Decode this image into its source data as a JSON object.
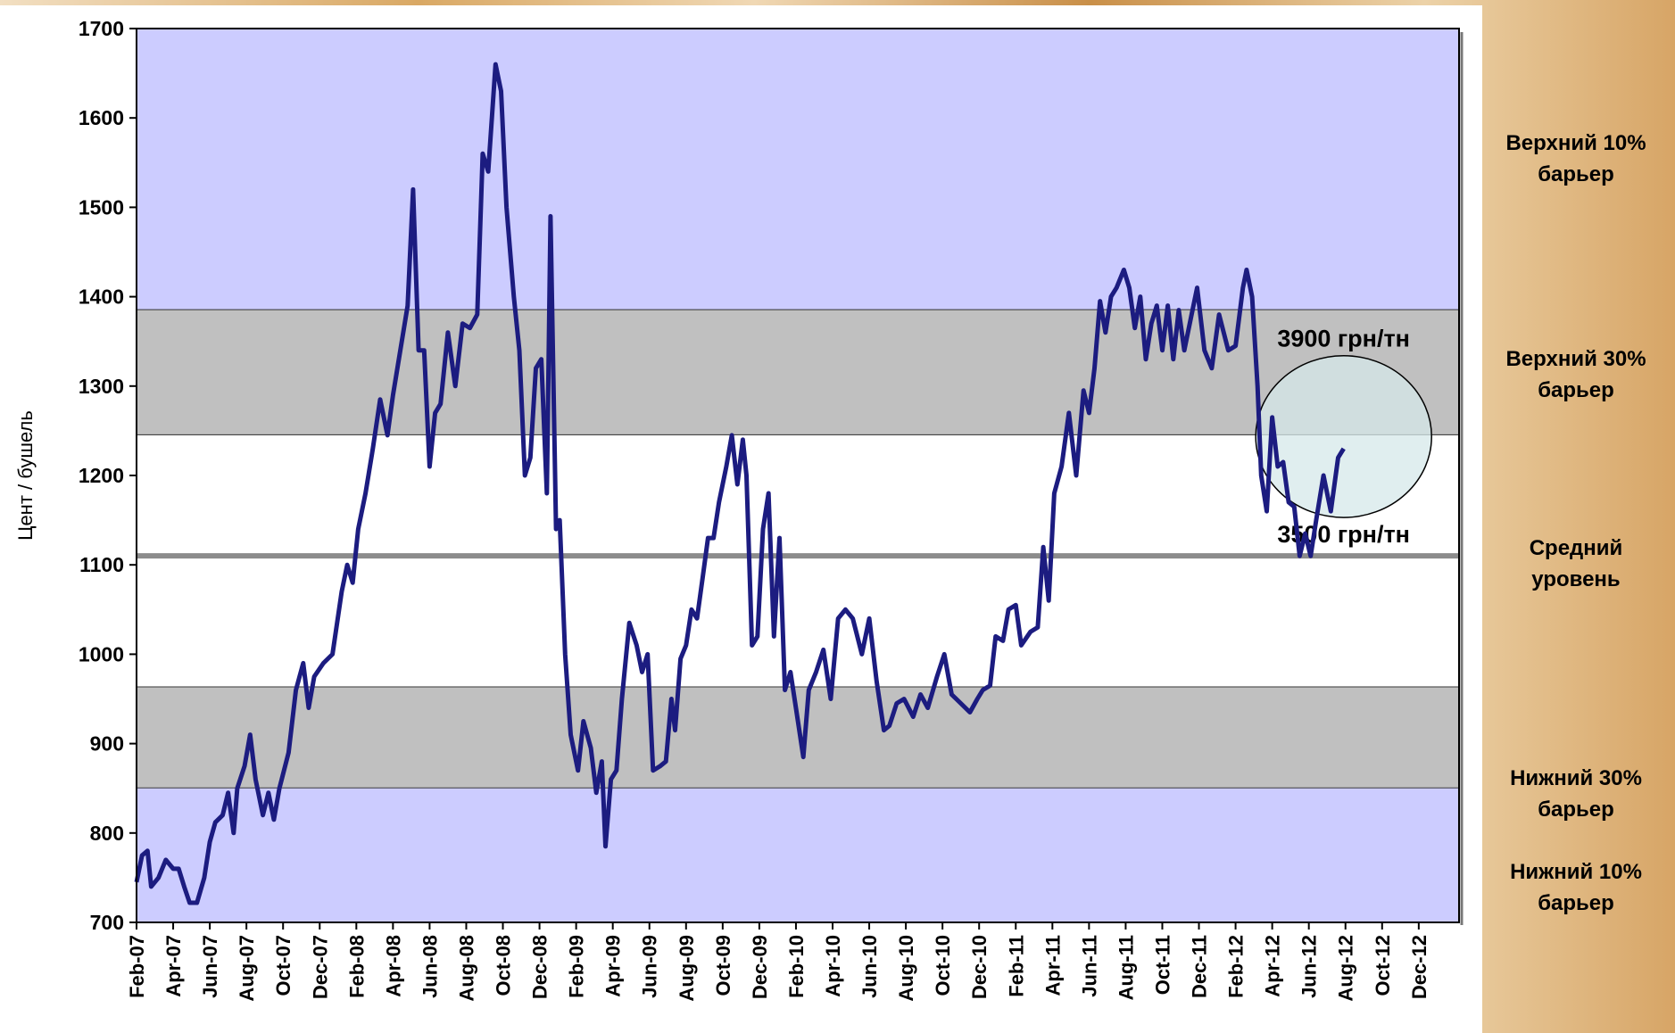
{
  "chart_data": {
    "type": "line",
    "y_label": "Цент / бушель",
    "xlim": [
      0,
      72.2
    ],
    "ylim": [
      700,
      1700
    ],
    "yticks": [
      700,
      800,
      900,
      1000,
      1100,
      1200,
      1300,
      1400,
      1500,
      1600,
      1700
    ],
    "xticks": [
      {
        "value": 0,
        "label": "Feb-07"
      },
      {
        "value": 2,
        "label": "Apr-07"
      },
      {
        "value": 4,
        "label": "Jun-07"
      },
      {
        "value": 6,
        "label": "Aug-07"
      },
      {
        "value": 8,
        "label": "Oct-07"
      },
      {
        "value": 10,
        "label": "Dec-07"
      },
      {
        "value": 12,
        "label": "Feb-08"
      },
      {
        "value": 14,
        "label": "Apr-08"
      },
      {
        "value": 16,
        "label": "Jun-08"
      },
      {
        "value": 18,
        "label": "Aug-08"
      },
      {
        "value": 20,
        "label": "Oct-08"
      },
      {
        "value": 22,
        "label": "Dec-08"
      },
      {
        "value": 24,
        "label": "Feb-09"
      },
      {
        "value": 26,
        "label": "Apr-09"
      },
      {
        "value": 28,
        "label": "Jun-09"
      },
      {
        "value": 30,
        "label": "Aug-09"
      },
      {
        "value": 32,
        "label": "Oct-09"
      },
      {
        "value": 34,
        "label": "Dec-09"
      },
      {
        "value": 36,
        "label": "Feb-10"
      },
      {
        "value": 38,
        "label": "Apr-10"
      },
      {
        "value": 40,
        "label": "Jun-10"
      },
      {
        "value": 42,
        "label": "Aug-10"
      },
      {
        "value": 44,
        "label": "Oct-10"
      },
      {
        "value": 46,
        "label": "Dec-10"
      },
      {
        "value": 48,
        "label": "Feb-11"
      },
      {
        "value": 50,
        "label": "Apr-11"
      },
      {
        "value": 52,
        "label": "Jun-11"
      },
      {
        "value": 54,
        "label": "Aug-11"
      },
      {
        "value": 56,
        "label": "Oct-11"
      },
      {
        "value": 58,
        "label": "Dec-11"
      },
      {
        "value": 60,
        "label": "Feb-12"
      },
      {
        "value": 62,
        "label": "Apr-12"
      },
      {
        "value": 64,
        "label": "Jun-12"
      },
      {
        "value": 66,
        "label": "Aug-12"
      },
      {
        "value": 68,
        "label": "Oct-12"
      },
      {
        "value": 70,
        "label": "Dec-12"
      }
    ],
    "bands": [
      {
        "from": 1385,
        "to": 1700,
        "color": "#ccccff"
      },
      {
        "from": 1245,
        "to": 1385,
        "color": "#c0c0c0"
      },
      {
        "from": 963,
        "to": 1245,
        "color": "#ffffff"
      },
      {
        "from": 850,
        "to": 963,
        "color": "#c0c0c0"
      },
      {
        "from": 700,
        "to": 850,
        "color": "#ccccff"
      }
    ],
    "mean_level": 1110,
    "highlight": {
      "xrange": [
        61.1,
        70.7
      ],
      "yrange": [
        1153,
        1334
      ]
    },
    "annotations": [
      "3900 грн/тн",
      "3500 грн/тн"
    ],
    "side_labels": [
      [
        "Верхний 10%",
        "барьер"
      ],
      [
        "Верхний 30%",
        "барьер"
      ],
      [
        "Средний",
        "уровень"
      ],
      [
        "Нижний 30%",
        "барьер"
      ],
      [
        "Нижний 10%",
        "барьер"
      ]
    ],
    "x": [
      0,
      0.3,
      0.6,
      0.8,
      1.2,
      1.6,
      2,
      2.3,
      2.6,
      2.9,
      3.3,
      3.7,
      4,
      4.3,
      4.7,
      5,
      5.3,
      5.5,
      5.9,
      6.2,
      6.5,
      6.9,
      7.2,
      7.5,
      7.8,
      8.3,
      8.7,
      9.1,
      9.4,
      9.7,
      10.2,
      10.7,
      11.2,
      11.5,
      11.8,
      12.1,
      12.5,
      12.9,
      13.3,
      13.7,
      14,
      14.4,
      14.8,
      15.1,
      15.4,
      15.7,
      16,
      16.3,
      16.6,
      17,
      17.4,
      17.8,
      18.2,
      18.6,
      18.9,
      19.2,
      19.6,
      19.9,
      20.2,
      20.6,
      20.9,
      21.2,
      21.5,
      21.8,
      22.1,
      22.4,
      22.6,
      22.9,
      23.1,
      23.4,
      23.7,
      24.1,
      24.4,
      24.8,
      25.1,
      25.4,
      25.6,
      25.9,
      26.2,
      26.5,
      26.9,
      27.3,
      27.6,
      27.9,
      28.2,
      28.6,
      28.9,
      29.2,
      29.4,
      29.7,
      30,
      30.3,
      30.6,
      30.9,
      31.2,
      31.5,
      31.8,
      32.2,
      32.5,
      32.8,
      33.1,
      33.3,
      33.6,
      33.9,
      34.2,
      34.5,
      34.8,
      35.1,
      35.4,
      35.7,
      36,
      36.4,
      36.7,
      37.1,
      37.5,
      37.9,
      38.3,
      38.7,
      39.1,
      39.6,
      40,
      40.4,
      40.8,
      41.1,
      41.5,
      41.9,
      42.4,
      42.8,
      43.2,
      43.7,
      44.1,
      44.5,
      45,
      45.5,
      45.9,
      46.2,
      46.6,
      46.9,
      47.3,
      47.6,
      48,
      48.3,
      48.8,
      49.2,
      49.5,
      49.8,
      50.1,
      50.5,
      50.9,
      51.3,
      51.7,
      52,
      52.3,
      52.6,
      52.9,
      53.2,
      53.5,
      53.9,
      54.2,
      54.5,
      54.8,
      55.1,
      55.4,
      55.7,
      56,
      56.3,
      56.6,
      56.9,
      57.2,
      57.6,
      57.9,
      58.3,
      58.7,
      59.1,
      59.6,
      60,
      60.4,
      60.6,
      60.9,
      61.2,
      61.4,
      61.7,
      62,
      62.3,
      62.6,
      62.9,
      63.2,
      63.5,
      63.8,
      64.1,
      64.4,
      64.8,
      65.2,
      65.6,
      65.9
    ],
    "series": [
      {
        "color": "#1c1c80",
        "values": [
          745,
          775,
          780,
          740,
          750,
          770,
          760,
          760,
          740,
          722,
          722,
          750,
          790,
          812,
          820,
          845,
          800,
          850,
          875,
          910,
          860,
          820,
          845,
          815,
          850,
          890,
          960,
          990,
          940,
          975,
          990,
          1000,
          1070,
          1100,
          1080,
          1140,
          1180,
          1230,
          1285,
          1245,
          1290,
          1340,
          1390,
          1520,
          1340,
          1340,
          1210,
          1270,
          1280,
          1360,
          1300,
          1370,
          1365,
          1380,
          1560,
          1540,
          1660,
          1630,
          1500,
          1400,
          1340,
          1200,
          1220,
          1320,
          1330,
          1180,
          1490,
          1140,
          1150,
          1000,
          910,
          870,
          925,
          895,
          845,
          880,
          785,
          860,
          870,
          950,
          1035,
          1010,
          980,
          1000,
          870,
          875,
          880,
          950,
          915,
          995,
          1010,
          1050,
          1040,
          1085,
          1130,
          1130,
          1170,
          1210,
          1245,
          1190,
          1240,
          1200,
          1010,
          1020,
          1140,
          1180,
          1020,
          1130,
          960,
          980,
          940,
          885,
          960,
          980,
          1005,
          950,
          1040,
          1050,
          1040,
          1000,
          1040,
          970,
          915,
          920,
          945,
          950,
          930,
          955,
          940,
          975,
          1000,
          955,
          945,
          935,
          950,
          960,
          965,
          1020,
          1015,
          1050,
          1055,
          1010,
          1025,
          1030,
          1120,
          1060,
          1180,
          1210,
          1270,
          1200,
          1295,
          1270,
          1320,
          1395,
          1360,
          1400,
          1410,
          1430,
          1410,
          1365,
          1400,
          1330,
          1370,
          1390,
          1340,
          1390,
          1330,
          1385,
          1340,
          1380,
          1410,
          1340,
          1320,
          1380,
          1340,
          1345,
          1410,
          1430,
          1400,
          1300,
          1200,
          1160,
          1265,
          1210,
          1215,
          1170,
          1165,
          1110,
          1135,
          1110,
          1150,
          1200,
          1160,
          1220,
          1230
        ]
      }
    ]
  }
}
